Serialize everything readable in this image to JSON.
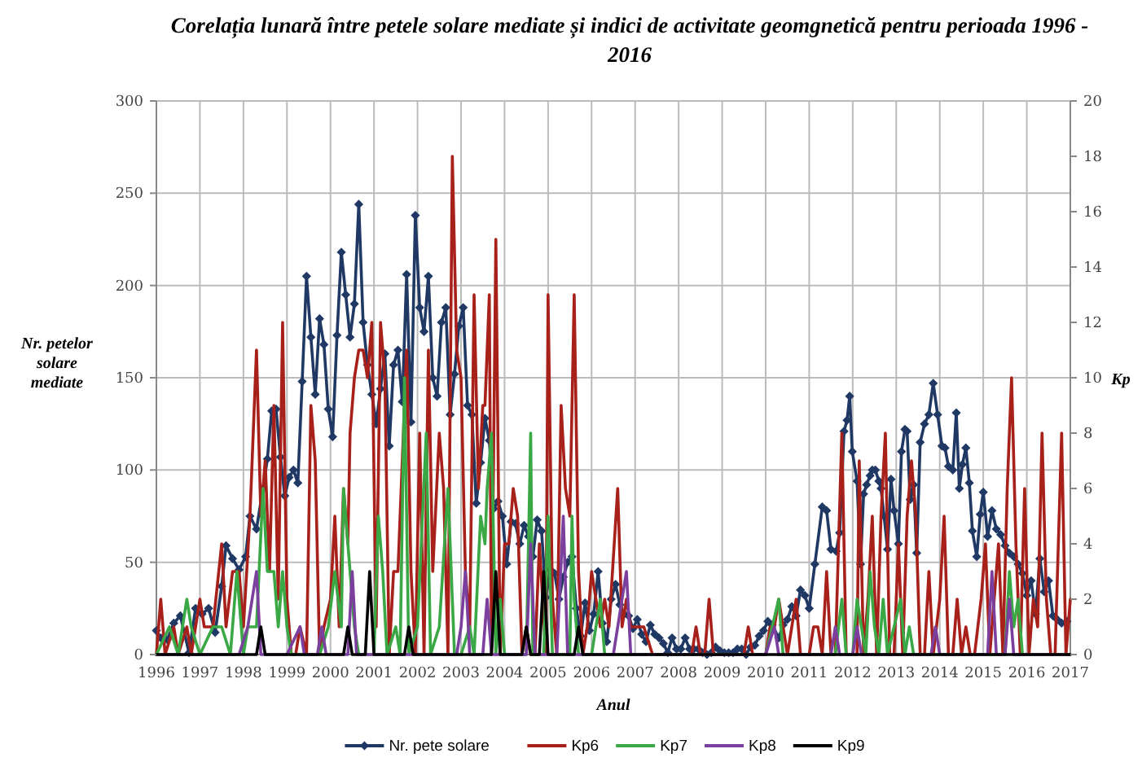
{
  "chart_data": {
    "type": "line",
    "title": "Corelația lunară între petele solare mediate și indici de activitate geomgnetică pentru perioada 1996 - 2016",
    "xlabel": "Anul",
    "ylabel": "Nr. petelor solare mediate",
    "y2label": "Kp",
    "xlim": [
      1996,
      2017
    ],
    "xticks": [
      1996,
      1997,
      1998,
      1999,
      2000,
      2001,
      2002,
      2003,
      2004,
      2005,
      2006,
      2007,
      2008,
      2009,
      2010,
      2011,
      2012,
      2013,
      2014,
      2015,
      2016,
      2017
    ],
    "ylim": [
      0,
      300
    ],
    "yticks": [
      0,
      50,
      100,
      150,
      200,
      250,
      300
    ],
    "y2lim": [
      0,
      20
    ],
    "y2ticks": [
      0,
      2,
      4,
      6,
      8,
      10,
      12,
      14,
      16,
      18,
      20
    ],
    "grid": true,
    "legend": "bottom",
    "line_style": "solid",
    "series": [
      {
        "name": "Nr. pete solare",
        "color": "#1f3864",
        "marker": "diamond",
        "x": [
          1996.0,
          1996.1,
          1996.25,
          1996.4,
          1996.55,
          1996.75,
          1996.9,
          1997.05,
          1997.2,
          1997.35,
          1997.5,
          1997.6,
          1997.75,
          1997.9,
          1998.05,
          1998.15,
          1998.3,
          1998.45,
          1998.55,
          1998.65,
          1998.75,
          1998.85,
          1998.95,
          1999.05,
          1999.15,
          1999.25,
          1999.35,
          1999.45,
          1999.55,
          1999.65,
          1999.75,
          1999.85,
          1999.95,
          2000.05,
          2000.15,
          2000.25,
          2000.35,
          2000.45,
          2000.55,
          2000.65,
          2000.75,
          2000.85,
          2000.95,
          2001.05,
          2001.15,
          2001.25,
          2001.35,
          2001.45,
          2001.55,
          2001.65,
          2001.75,
          2001.85,
          2001.95,
          2002.05,
          2002.15,
          2002.25,
          2002.35,
          2002.45,
          2002.55,
          2002.65,
          2002.75,
          2002.85,
          2002.95,
          2003.05,
          2003.15,
          2003.25,
          2003.35,
          2003.45,
          2003.55,
          2003.65,
          2003.75,
          2003.85,
          2003.95,
          2004.05,
          2004.15,
          2004.25,
          2004.35,
          2004.45,
          2004.55,
          2004.65,
          2004.75,
          2004.85,
          2004.95,
          2005.05,
          2005.15,
          2005.25,
          2005.35,
          2005.45,
          2005.55,
          2005.65,
          2005.75,
          2005.85,
          2005.95,
          2006.05,
          2006.15,
          2006.25,
          2006.35,
          2006.45,
          2006.55,
          2006.65,
          2006.75,
          2006.85,
          2006.95,
          2007.05,
          2007.15,
          2007.25,
          2007.35,
          2007.45,
          2007.55,
          2007.65,
          2007.75,
          2007.85,
          2007.95,
          2008.05,
          2008.15,
          2008.25,
          2008.35,
          2008.45,
          2008.55,
          2008.65,
          2008.75,
          2008.85,
          2008.95,
          2009.05,
          2009.15,
          2009.25,
          2009.35,
          2009.45,
          2009.55,
          2009.65,
          2009.75,
          2009.85,
          2009.95,
          2010.05,
          2010.15,
          2010.3,
          2010.4,
          2010.5,
          2010.6,
          2010.7,
          2010.8,
          2010.9,
          2011.0,
          2011.13,
          2011.3,
          2011.4,
          2011.5,
          2011.62,
          2011.7,
          2011.8,
          2011.87,
          2011.93,
          2011.99,
          2012.1,
          2012.18,
          2012.25,
          2012.32,
          2012.4,
          2012.45,
          2012.52,
          2012.6,
          2012.65,
          2012.72,
          2012.8,
          2012.88,
          2012.95,
          2013.05,
          2013.12,
          2013.2,
          2013.25,
          2013.32,
          2013.4,
          2013.47,
          2013.55,
          2013.65,
          2013.75,
          2013.85,
          2013.95,
          2014.05,
          2014.12,
          2014.2,
          2014.3,
          2014.38,
          2014.45,
          2014.52,
          2014.6,
          2014.68,
          2014.75,
          2014.85,
          2014.93,
          2015.0,
          2015.1,
          2015.2,
          2015.3,
          2015.4,
          2015.5,
          2015.6,
          2015.7,
          2015.8,
          2015.9,
          2016.0,
          2016.1,
          2016.2,
          2016.3,
          2016.4,
          2016.5,
          2016.6,
          2016.7,
          2016.8,
          2016.92
        ],
        "values": [
          13,
          9,
          8,
          17,
          21,
          1,
          25,
          22,
          25,
          12,
          37,
          59,
          52,
          46,
          53,
          75,
          68,
          90,
          106,
          132,
          133,
          107,
          86,
          96,
          100,
          93,
          148,
          205,
          172,
          141,
          182,
          168,
          133,
          118,
          173,
          218,
          195,
          172,
          190,
          244,
          180,
          157,
          141,
          125,
          144,
          163,
          113,
          157,
          165,
          137,
          206,
          126,
          238,
          188,
          175,
          205,
          150,
          140,
          180,
          188,
          130,
          152,
          178,
          188,
          135,
          130,
          82,
          104,
          128,
          116,
          79,
          83,
          75,
          49,
          72,
          71,
          60,
          70,
          64,
          53,
          73,
          67,
          31,
          46,
          44,
          30,
          42,
          50,
          53,
          25,
          10,
          28,
          13,
          22,
          45,
          17,
          7,
          30,
          38,
          27,
          22,
          21,
          14,
          19,
          11,
          7,
          16,
          11,
          9,
          6,
          1,
          9,
          3,
          3,
          9,
          3,
          3,
          3,
          1,
          0,
          1,
          4,
          2,
          1,
          1,
          1,
          3,
          3,
          0,
          4,
          5,
          10,
          13,
          18,
          16,
          9,
          16,
          19,
          26,
          21,
          35,
          32,
          25,
          49,
          80,
          78,
          57,
          56,
          66,
          121,
          127,
          140,
          110,
          94,
          49,
          87,
          92,
          97,
          100,
          100,
          94,
          90,
          75,
          57,
          95,
          78,
          60,
          110,
          122,
          121,
          84,
          92,
          55,
          115,
          125,
          130,
          147,
          130,
          113,
          112,
          102,
          100,
          131,
          90,
          103,
          112,
          93,
          67,
          53,
          76,
          88,
          64,
          78,
          68,
          65,
          59,
          55,
          53,
          49,
          44,
          32,
          40,
          22,
          52,
          34,
          40,
          21,
          19,
          17,
          18
        ]
      },
      {
        "name": "Kp6",
        "color": "#a8201a",
        "axis": "y2",
        "x": [
          1996.0,
          1996.1,
          1996.2,
          1996.4,
          1996.5,
          1996.7,
          1996.8,
          1997.0,
          1997.1,
          1997.3,
          1997.5,
          1997.6,
          1997.75,
          1997.9,
          1998.0,
          1998.15,
          1998.3,
          1998.4,
          1998.5,
          1998.6,
          1998.7,
          1998.8,
          1998.9,
          1999.0,
          1999.1,
          1999.2,
          1999.3,
          1999.45,
          1999.55,
          1999.65,
          1999.75,
          1999.85,
          2000.0,
          2000.1,
          2000.2,
          2000.3,
          2000.4,
          2000.45,
          2000.55,
          2000.65,
          2000.75,
          2000.85,
          2000.95,
          2001.05,
          2001.15,
          2001.25,
          2001.35,
          2001.45,
          2001.55,
          2001.65,
          2001.75,
          2001.85,
          2001.95,
          2002.05,
          2002.15,
          2002.25,
          2002.35,
          2002.5,
          2002.6,
          2002.7,
          2002.8,
          2002.9,
          2003.0,
          2003.1,
          2003.2,
          2003.3,
          2003.4,
          2003.5,
          2003.55,
          2003.65,
          2003.7,
          2003.8,
          2003.9,
          2004.0,
          2004.1,
          2004.2,
          2004.3,
          2004.4,
          2004.5,
          2004.6,
          2004.7,
          2004.8,
          2004.95,
          2005.0,
          2005.1,
          2005.2,
          2005.3,
          2005.4,
          2005.5,
          2005.6,
          2005.7,
          2005.8,
          2005.9,
          2006.0,
          2006.2,
          2006.3,
          2006.4,
          2006.6,
          2006.7,
          2006.8,
          2006.9,
          2007.0,
          2007.2,
          2007.4,
          2007.6,
          2008.0,
          2008.3,
          2008.4,
          2008.5,
          2008.6,
          2008.7,
          2008.8,
          2009.0,
          2009.5,
          2009.6,
          2009.7,
          2010.0,
          2010.1,
          2010.2,
          2010.3,
          2010.4,
          2010.5,
          2010.6,
          2010.7,
          2010.8,
          2011.0,
          2011.1,
          2011.2,
          2011.3,
          2011.4,
          2011.5,
          2011.6,
          2011.75,
          2011.85,
          2012.0,
          2012.1,
          2012.15,
          2012.25,
          2012.35,
          2012.45,
          2012.55,
          2012.65,
          2012.75,
          2012.85,
          2012.95,
          2013.05,
          2013.15,
          2013.25,
          2013.35,
          2013.45,
          2013.55,
          2013.65,
          2013.75,
          2013.85,
          2014.0,
          2014.1,
          2014.2,
          2014.3,
          2014.4,
          2014.5,
          2014.6,
          2014.7,
          2014.8,
          2014.95,
          2015.05,
          2015.15,
          2015.25,
          2015.35,
          2015.45,
          2015.55,
          2015.65,
          2015.75,
          2015.85,
          2015.95,
          2016.05,
          2016.15,
          2016.25,
          2016.35,
          2016.45,
          2016.55,
          2016.65,
          2016.8,
          2016.9,
          2017.0
        ],
        "values": [
          0,
          2,
          0,
          1,
          0,
          1,
          0,
          2,
          1,
          1,
          4,
          1,
          3,
          3,
          1,
          5,
          11,
          5,
          7,
          3,
          9,
          2,
          12,
          2,
          0,
          0,
          1,
          0,
          9,
          7,
          0,
          1,
          2,
          5,
          1,
          6,
          4,
          8,
          10,
          11,
          11,
          10,
          12,
          1,
          12,
          10,
          0,
          3,
          3,
          7,
          11,
          3,
          0,
          8,
          0,
          11,
          3,
          8,
          6,
          0,
          18,
          11,
          10,
          3,
          1,
          13,
          6,
          9,
          9,
          13,
          0,
          15,
          0,
          4,
          4,
          6,
          5,
          0,
          1,
          0,
          0,
          4,
          0,
          13,
          2,
          0,
          9,
          6,
          5,
          13,
          3,
          0,
          1,
          3,
          1,
          2,
          1,
          6,
          1,
          2,
          1,
          1,
          1,
          0,
          0,
          0,
          0,
          1,
          0,
          0,
          2,
          0,
          0,
          0,
          1,
          0,
          0,
          1,
          1,
          2,
          1,
          0,
          1,
          2,
          0,
          0,
          1,
          1,
          0,
          3,
          0,
          0,
          8,
          0,
          0,
          0,
          7,
          0,
          2,
          5,
          0,
          5,
          8,
          0,
          0,
          4,
          0,
          5,
          7,
          5,
          0,
          0,
          3,
          0,
          2,
          5,
          0,
          0,
          2,
          0,
          1,
          0,
          0,
          2,
          4,
          0,
          2,
          4,
          0,
          6,
          10,
          4,
          0,
          6,
          0,
          2,
          1,
          8,
          2,
          0,
          0,
          8,
          0,
          2
        ]
      },
      {
        "name": "Kp7",
        "color": "#3aa845",
        "axis": "y2",
        "x": [
          1996.0,
          1996.3,
          1996.5,
          1996.7,
          1996.8,
          1997.0,
          1997.3,
          1997.5,
          1997.7,
          1997.85,
          1998.0,
          1998.1,
          1998.3,
          1998.45,
          1998.55,
          1998.7,
          1998.8,
          1998.9,
          1999.0,
          1999.1,
          1999.2,
          1999.4,
          1999.6,
          1999.75,
          1999.95,
          2000.1,
          2000.25,
          2000.3,
          2000.45,
          2000.55,
          2000.65,
          2001.0,
          2001.1,
          2001.2,
          2001.3,
          2001.5,
          2001.6,
          2001.7,
          2001.8,
          2002.0,
          2002.2,
          2002.3,
          2002.5,
          2002.7,
          2002.85,
          2003.0,
          2003.2,
          2003.3,
          2003.45,
          2003.55,
          2003.6,
          2003.7,
          2003.8,
          2003.9,
          2004.0,
          2004.1,
          2004.5,
          2004.6,
          2004.65,
          2004.9,
          2005.0,
          2005.1,
          2005.3,
          2005.5,
          2005.55,
          2005.6,
          2005.7,
          2006.0,
          2006.2,
          2006.3,
          2006.6,
          2007.0,
          2010.0,
          2010.3,
          2010.4,
          2011.0,
          2011.6,
          2011.75,
          2011.85,
          2012.0,
          2012.1,
          2012.2,
          2012.3,
          2012.4,
          2012.5,
          2012.6,
          2012.7,
          2012.8,
          2013.1,
          2013.2,
          2013.3,
          2013.4,
          2015.0,
          2015.5,
          2015.6,
          2015.7,
          2015.8,
          2015.9,
          2016.0
        ],
        "values": [
          0,
          1,
          0,
          2,
          1,
          0,
          1,
          1,
          0,
          3,
          0,
          1,
          1,
          6,
          3,
          3,
          1,
          3,
          1,
          0,
          0,
          0,
          0,
          0,
          1,
          3,
          1,
          6,
          3,
          1,
          0,
          0,
          5,
          3,
          0,
          1,
          0,
          10,
          0,
          1,
          8,
          0,
          1,
          6,
          0,
          0,
          1,
          0,
          5,
          4,
          6,
          8,
          0,
          2,
          0,
          0,
          0,
          8,
          0,
          0,
          5,
          0,
          0,
          0,
          5,
          2,
          0,
          0,
          2,
          0,
          0,
          0,
          0,
          2,
          0,
          0,
          0,
          2,
          0,
          0,
          2,
          1,
          0,
          3,
          1,
          0,
          2,
          0,
          2,
          0,
          1,
          0,
          0,
          0,
          3,
          1,
          2,
          0,
          0
        ]
      },
      {
        "name": "Kp8",
        "color": "#7b3f9e",
        "axis": "y2",
        "x": [
          1996.0,
          1997.9,
          1998.1,
          1998.3,
          1998.4,
          1999.0,
          1999.3,
          1999.4,
          1999.7,
          1999.8,
          1999.9,
          2000.4,
          2000.5,
          2000.6,
          2001.0,
          2002.9,
          2003.0,
          2003.1,
          2003.2,
          2003.5,
          2003.6,
          2003.7,
          2004.5,
          2004.6,
          2004.7,
          2005.2,
          2005.35,
          2005.45,
          2006.5,
          2006.8,
          2006.9,
          2010.0,
          2010.2,
          2010.3,
          2011.5,
          2011.6,
          2011.7,
          2012.0,
          2012.1,
          2012.2,
          2013.8,
          2013.9,
          2014.0,
          2015.1,
          2015.2,
          2015.3,
          2015.5,
          2015.6,
          2015.7,
          2017.0
        ],
        "values": [
          0,
          0,
          1,
          3,
          0,
          0,
          1,
          0,
          0,
          1,
          0,
          0,
          3,
          0,
          0,
          0,
          1,
          3,
          0,
          0,
          2,
          0,
          0,
          4,
          0,
          0,
          5,
          0,
          0,
          3,
          0,
          0,
          1,
          0,
          0,
          1,
          0,
          0,
          1,
          0,
          0,
          1,
          0,
          0,
          3,
          0,
          0,
          2,
          0,
          0
        ]
      },
      {
        "name": "Kp9",
        "color": "#000000",
        "axis": "y2",
        "x": [
          1996.0,
          1998.3,
          1998.4,
          1998.5,
          2000.3,
          2000.4,
          2000.5,
          2000.8,
          2000.9,
          2001.0,
          2001.7,
          2001.8,
          2001.9,
          2003.7,
          2003.8,
          2003.9,
          2004.4,
          2004.5,
          2004.6,
          2004.8,
          2004.9,
          2005.0,
          2005.6,
          2005.7,
          2005.8,
          2017.0
        ],
        "values": [
          0,
          0,
          1,
          0,
          0,
          1,
          0,
          0,
          3,
          0,
          0,
          1,
          0,
          0,
          3,
          0,
          0,
          1,
          0,
          0,
          3,
          0,
          0,
          1,
          0,
          0
        ]
      }
    ]
  }
}
